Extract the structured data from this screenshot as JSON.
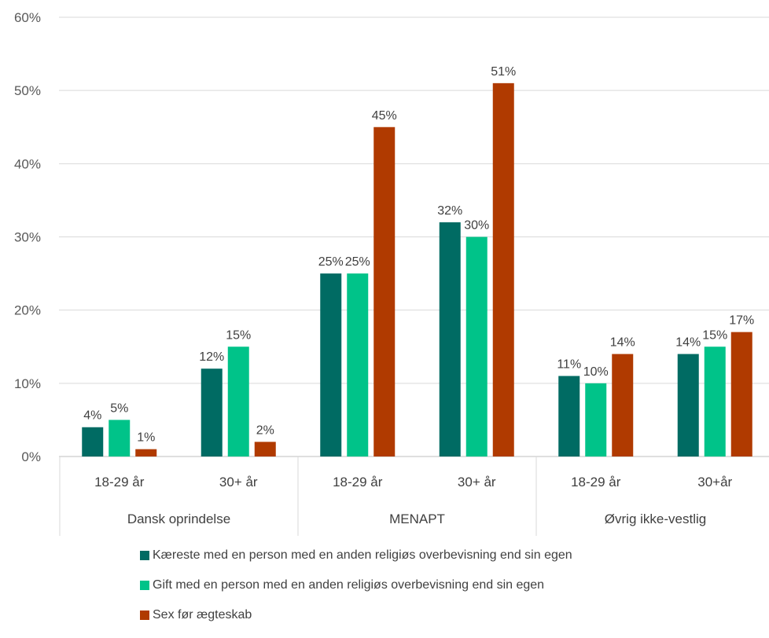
{
  "chart_data": {
    "type": "bar",
    "ylim": [
      0,
      60
    ],
    "ytick_labels": [
      "0%",
      "10%",
      "20%",
      "30%",
      "40%",
      "50%",
      "60%"
    ],
    "groups": [
      {
        "name": "Dansk oprindelse",
        "categories": [
          "18-29 år",
          "30+ år"
        ]
      },
      {
        "name": "MENAPT",
        "categories": [
          "18-29 år",
          "30+ år"
        ]
      },
      {
        "name": "Øvrig ikke-vestlig",
        "categories": [
          "18-29 år",
          "30+år"
        ]
      }
    ],
    "series": [
      {
        "name": "Kæreste med en person med en anden religiøs overbevisning end sin egen",
        "color": "#006b63",
        "values": [
          4,
          12,
          25,
          32,
          11,
          14
        ],
        "labels": [
          "4%",
          "12%",
          "25%",
          "32%",
          "11%",
          "14%"
        ]
      },
      {
        "name": "Gift med en person med en anden religiøs overbevisning end sin egen",
        "color": "#00c389",
        "values": [
          5,
          15,
          25,
          30,
          10,
          15
        ],
        "labels": [
          "5%",
          "15%",
          "25%",
          "30%",
          "10%",
          "15%"
        ]
      },
      {
        "name": "Sex før ægteskab",
        "color": "#b03a00",
        "values": [
          1,
          2,
          45,
          51,
          14,
          17
        ],
        "labels": [
          "1%",
          "2%",
          "45%",
          "51%",
          "14%",
          "17%"
        ]
      }
    ],
    "gridlines": true,
    "legend_position": "bottom"
  }
}
